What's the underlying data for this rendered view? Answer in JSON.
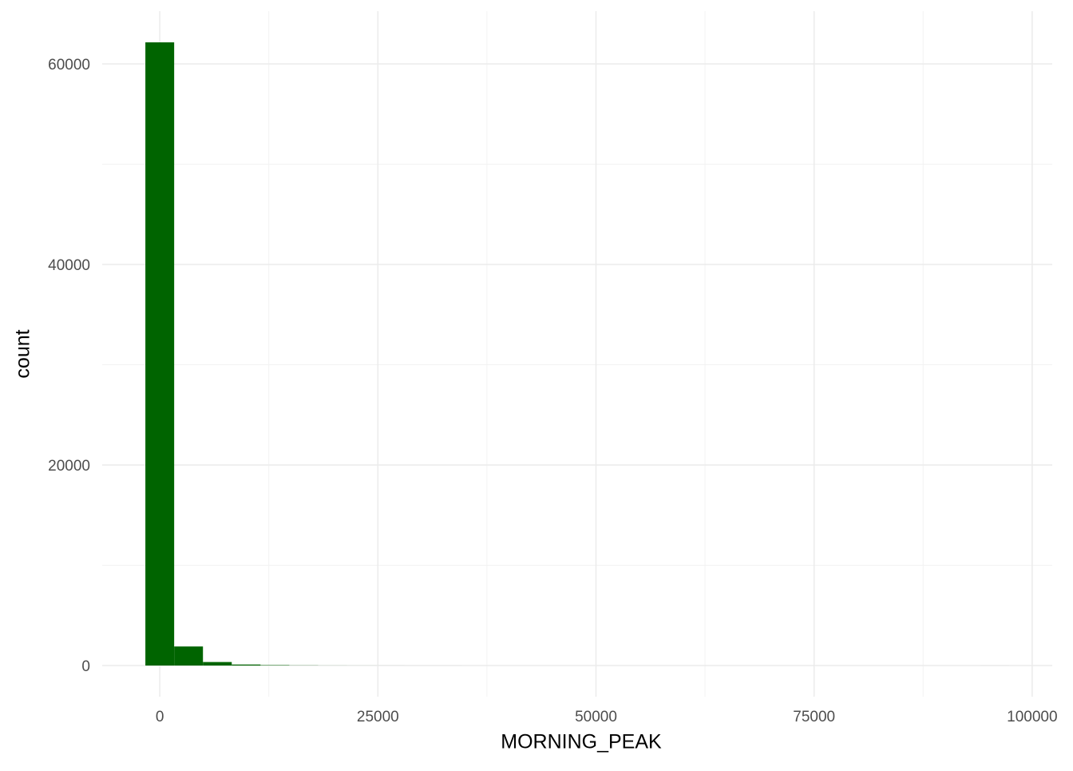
{
  "chart_data": {
    "type": "histogram",
    "x_label": "MORNING_PEAK",
    "y_label": "count",
    "bins": [
      -1650,
      1650,
      4950,
      8250,
      11550,
      14850,
      18150,
      21450,
      24750,
      28050,
      31350,
      34650,
      37950,
      41250,
      44550,
      47850,
      51150,
      54450,
      57750,
      61050,
      64350,
      67650,
      70950,
      74250,
      77550,
      80850,
      84150,
      87450,
      90750,
      94050,
      97350
    ],
    "values": [
      62150,
      1900,
      350,
      100,
      40,
      15,
      5,
      3,
      2,
      1,
      1,
      0,
      0,
      0,
      0,
      0,
      0,
      0,
      0,
      0,
      0,
      0,
      0,
      0,
      0,
      0,
      0,
      0,
      0,
      1
    ],
    "color": "#006400",
    "xlim": [
      -6600,
      102300
    ],
    "xticks": [
      0,
      25000,
      50000,
      75000,
      100000
    ],
    "ylim": [
      -3108,
      65258
    ],
    "yticks": [
      0,
      20000,
      40000,
      60000
    ],
    "grid": true
  }
}
